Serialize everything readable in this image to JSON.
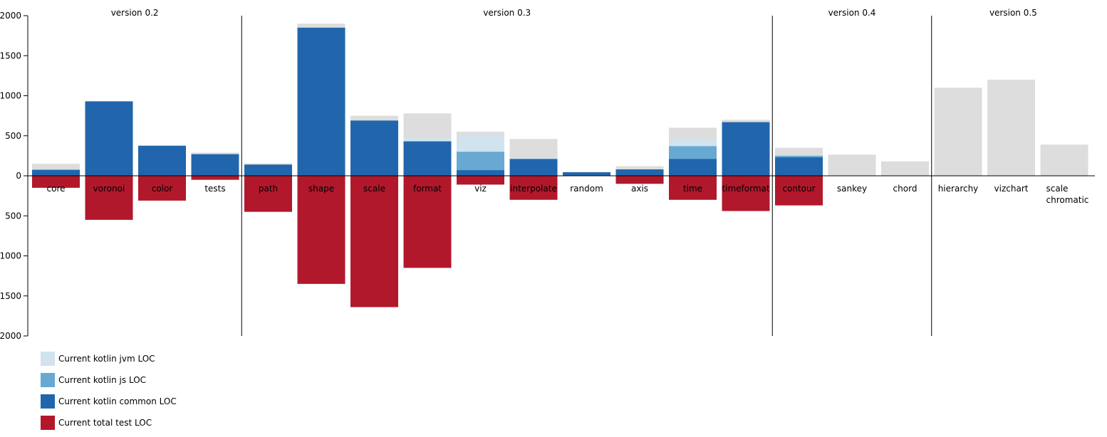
{
  "chart_data": {
    "type": "bar",
    "ylim": [
      -2000,
      2000
    ],
    "y_ticks": [
      2000,
      1500,
      1000,
      500,
      0,
      500,
      1000,
      1500,
      2000
    ],
    "y_tick_values": [
      2000,
      1500,
      1000,
      500,
      0,
      -500,
      -1000,
      -1500,
      -2000
    ],
    "stacked": true,
    "categories": [
      {
        "name": "core",
        "label_lines": [
          "core"
        ],
        "total": 150,
        "common": 75,
        "js": 0,
        "jvm": 0,
        "test": 150
      },
      {
        "name": "voronoi",
        "label_lines": [
          "voronoi"
        ],
        "total": 930,
        "common": 930,
        "js": 0,
        "jvm": 0,
        "test": 550
      },
      {
        "name": "color",
        "label_lines": [
          "color"
        ],
        "total": 380,
        "common": 375,
        "js": 0,
        "jvm": 0,
        "test": 310
      },
      {
        "name": "tests",
        "label_lines": [
          "tests"
        ],
        "total": 290,
        "common": 270,
        "js": 0,
        "jvm": 0,
        "test": 50
      },
      {
        "name": "path",
        "label_lines": [
          "path"
        ],
        "total": 155,
        "common": 140,
        "js": 0,
        "jvm": 0,
        "test": 450
      },
      {
        "name": "shape",
        "label_lines": [
          "shape"
        ],
        "total": 1900,
        "common": 1850,
        "js": 0,
        "jvm": 0,
        "test": 1350
      },
      {
        "name": "scale",
        "label_lines": [
          "scale"
        ],
        "total": 750,
        "common": 690,
        "js": 0,
        "jvm": 0,
        "test": 1640
      },
      {
        "name": "format",
        "label_lines": [
          "format"
        ],
        "total": 780,
        "common": 430,
        "js": 0,
        "jvm": 470,
        "test": 1150
      },
      {
        "name": "viz",
        "label_lines": [
          "viz"
        ],
        "total": 550,
        "common": 70,
        "js": 300,
        "jvm": 500,
        "test": 110
      },
      {
        "name": "interpolate",
        "label_lines": [
          "interpolate"
        ],
        "total": 460,
        "common": 210,
        "js": 0,
        "jvm": 220,
        "test": 300
      },
      {
        "name": "random",
        "label_lines": [
          "random"
        ],
        "total": 45,
        "common": 45,
        "js": 0,
        "jvm": 0,
        "test": 0
      },
      {
        "name": "axis",
        "label_lines": [
          "axis"
        ],
        "total": 120,
        "common": 80,
        "js": 0,
        "jvm": 0,
        "test": 100
      },
      {
        "name": "time",
        "label_lines": [
          "time"
        ],
        "total": 600,
        "common": 210,
        "js": 370,
        "jvm": 450,
        "test": 300
      },
      {
        "name": "timeformat",
        "label_lines": [
          "timeformat"
        ],
        "total": 700,
        "common": 670,
        "js": 0,
        "jvm": 0,
        "test": 440
      },
      {
        "name": "contour",
        "label_lines": [
          "contour"
        ],
        "total": 350,
        "common": 230,
        "js": 250,
        "jvm": 0,
        "test": 370
      },
      {
        "name": "sankey",
        "label_lines": [
          "sankey"
        ],
        "total": 265,
        "common": 0,
        "js": 0,
        "jvm": 0,
        "test": 0
      },
      {
        "name": "chord",
        "label_lines": [
          "chord"
        ],
        "total": 180,
        "common": 0,
        "js": 0,
        "jvm": 0,
        "test": 0
      },
      {
        "name": "hierarchy",
        "label_lines": [
          "hierarchy"
        ],
        "total": 1100,
        "common": 0,
        "js": 0,
        "jvm": 0,
        "test": 0
      },
      {
        "name": "vizchart",
        "label_lines": [
          "vizchart"
        ],
        "total": 1200,
        "common": 0,
        "js": 0,
        "jvm": 0,
        "test": 0
      },
      {
        "name": "scale chromatic",
        "label_lines": [
          "scale",
          "chromatic"
        ],
        "total": 390,
        "common": 0,
        "js": 0,
        "jvm": 0,
        "test": 0
      }
    ],
    "versions": [
      {
        "label": "version 0.2",
        "start": 0,
        "end": 4
      },
      {
        "label": "version 0.3",
        "start": 4,
        "end": 14
      },
      {
        "label": "version 0.4",
        "start": 14,
        "end": 17
      },
      {
        "label": "version 0.5",
        "start": 17,
        "end": 20
      }
    ],
    "legend": [
      {
        "key": "jvm",
        "label": "Current kotlin jvm LOC"
      },
      {
        "key": "js",
        "label": "Current kotlin js LOC"
      },
      {
        "key": "common",
        "label": "Current kotlin common LOC"
      },
      {
        "key": "test",
        "label": "Current total test LOC"
      }
    ],
    "legend_placement": "bottom-left",
    "colors": {
      "total": "#dddddd",
      "jvm": "#d0e3ef",
      "js": "#68a9d3",
      "common": "#2166ac",
      "test": "#b2182b",
      "axis": "#000000"
    }
  }
}
